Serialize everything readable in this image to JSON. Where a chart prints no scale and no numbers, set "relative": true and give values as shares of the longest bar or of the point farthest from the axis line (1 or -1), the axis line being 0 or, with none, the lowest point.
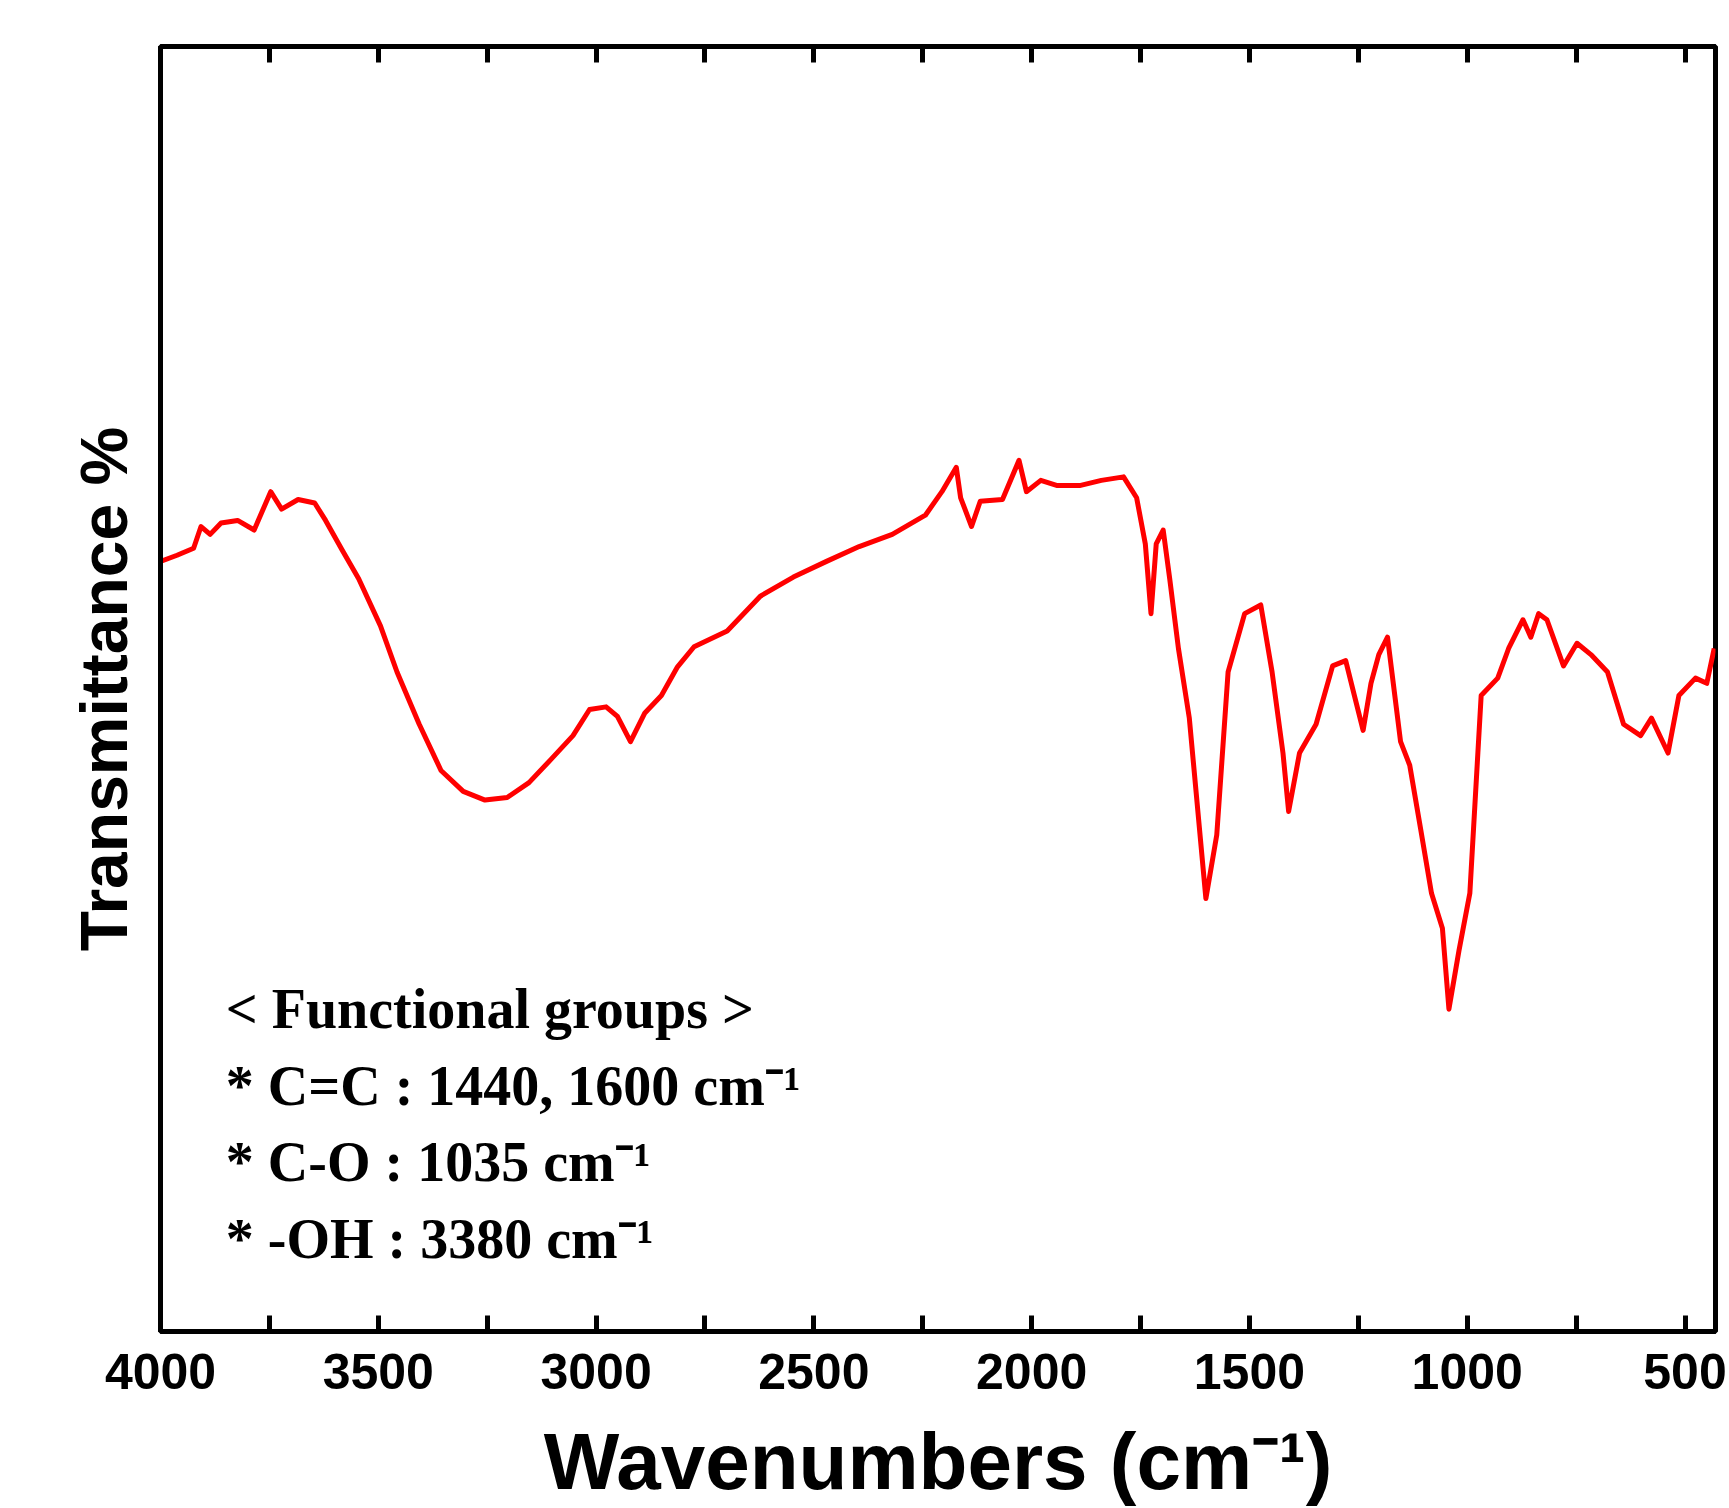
{
  "chart_data": {
    "type": "line",
    "relative": true,
    "xlabel": "Wavenumbers (cm⁻¹)",
    "ylabel": "Transmittance %",
    "xlim": [
      4000,
      430
    ],
    "xticks": [
      4000,
      {
        "value": 3750,
        "label": null
      },
      3500,
      {
        "value": 3250,
        "label": null
      },
      3000,
      {
        "value": 2750,
        "label": null
      },
      2500,
      {
        "value": 2250,
        "label": null
      },
      2000,
      {
        "value": 1750,
        "label": null
      },
      1500,
      {
        "value": 1250,
        "label": null
      },
      1000,
      {
        "value": 750,
        "label": null
      },
      500
    ],
    "annotations": [
      "< Functional groups >",
      "* C=C : 1440, 1600 cm⁻¹",
      "* C-O : 1035 cm⁻¹",
      "* -OH : 3380 cm⁻¹"
    ],
    "x": [
      4000,
      3962,
      3924,
      3907,
      3886,
      3861,
      3823,
      3785,
      3747,
      3722,
      3684,
      3646,
      3621,
      3583,
      3545,
      3495,
      3457,
      3406,
      3356,
      3305,
      3255,
      3204,
      3154,
      3103,
      3053,
      3015,
      2977,
      2951,
      2921,
      2888,
      2850,
      2813,
      2775,
      2699,
      2623,
      2547,
      2471,
      2396,
      2320,
      2244,
      2206,
      2173,
      2163,
      2138,
      2118,
      2067,
      2029,
      2012,
      1979,
      1941,
      1890,
      1840,
      1789,
      1759,
      1739,
      1726,
      1714,
      1698,
      1683,
      1663,
      1638,
      1600,
      1575,
      1549,
      1511,
      1474,
      1448,
      1423,
      1410,
      1385,
      1347,
      1309,
      1279,
      1259,
      1239,
      1221,
      1203,
      1183,
      1153,
      1132,
      1107,
      1082,
      1057,
      1042,
      1019,
      994,
      968,
      930,
      905,
      872,
      854,
      836,
      817,
      779,
      748,
      716,
      678,
      641,
      602,
      577,
      539,
      514,
      476,
      450,
      433
    ],
    "series": [
      {
        "color": "#ff0000",
        "values": [
          0.884,
          0.891,
          0.899,
          0.924,
          0.915,
          0.928,
          0.931,
          0.92,
          0.964,
          0.944,
          0.955,
          0.951,
          0.931,
          0.897,
          0.864,
          0.81,
          0.757,
          0.697,
          0.644,
          0.62,
          0.61,
          0.613,
          0.63,
          0.657,
          0.684,
          0.714,
          0.717,
          0.706,
          0.677,
          0.71,
          0.73,
          0.763,
          0.786,
          0.804,
          0.844,
          0.866,
          0.884,
          0.901,
          0.915,
          0.937,
          0.964,
          0.992,
          0.957,
          0.924,
          0.953,
          0.955,
          1.0,
          0.964,
          0.977,
          0.971,
          0.971,
          0.977,
          0.981,
          0.957,
          0.904,
          0.824,
          0.904,
          0.92,
          0.864,
          0.784,
          0.704,
          0.497,
          0.57,
          0.757,
          0.824,
          0.834,
          0.757,
          0.664,
          0.597,
          0.664,
          0.697,
          0.764,
          0.77,
          0.73,
          0.69,
          0.744,
          0.777,
          0.797,
          0.677,
          0.65,
          0.577,
          0.503,
          0.463,
          0.37,
          0.437,
          0.503,
          0.73,
          0.75,
          0.784,
          0.817,
          0.797,
          0.824,
          0.817,
          0.764,
          0.79,
          0.777,
          0.757,
          0.697,
          0.684,
          0.704,
          0.664,
          0.73,
          0.75,
          0.744,
          0.784
        ]
      }
    ]
  }
}
